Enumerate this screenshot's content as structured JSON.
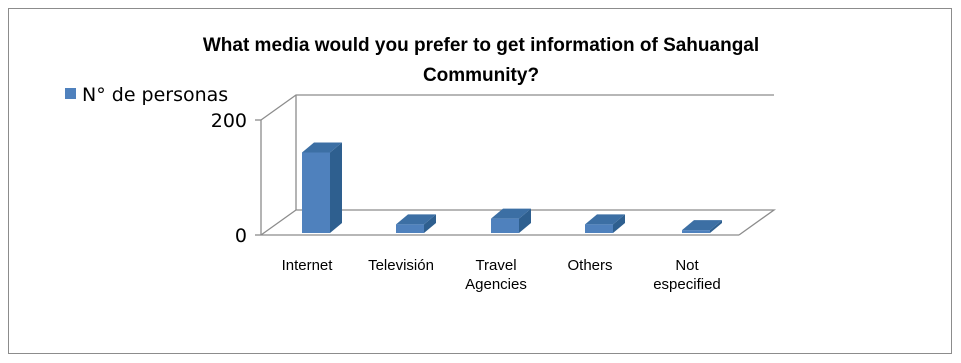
{
  "chart_data": {
    "type": "bar",
    "title": "What media would you prefer to get information of Sahuangal Community?",
    "title_lines": [
      "What media would you prefer to get information of Sahuangal",
      "Community?"
    ],
    "categories": [
      "Internet",
      "Televisión",
      "Travel Agencies",
      "Others",
      "Not especified"
    ],
    "category_lines": [
      [
        "Internet"
      ],
      [
        "Televisión"
      ],
      [
        "Travel",
        "Agencies"
      ],
      [
        "Others"
      ],
      [
        "Not",
        "especified"
      ]
    ],
    "series": [
      {
        "name": "N° de personas",
        "values": [
          140,
          15,
          25,
          15,
          5
        ],
        "color": "#4f81bd"
      }
    ],
    "ylim": [
      0,
      200
    ],
    "yticks": [
      "0",
      "200"
    ],
    "legend_position": "top-left",
    "chart_style": "3d-column",
    "grid": false
  }
}
